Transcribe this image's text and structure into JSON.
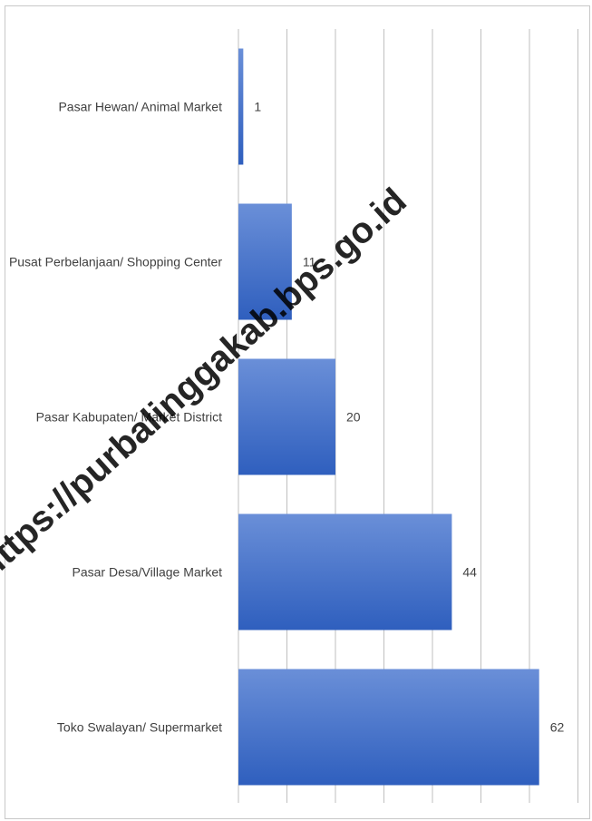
{
  "watermark": "https://purbalinggakab.bps.go.id",
  "chart_data": {
    "type": "bar",
    "orientation": "horizontal",
    "categories": [
      "Pasar Hewan/ Animal Market",
      "Pusat Perbelanjaan/ Shopping Center",
      "Pasar Kabupaten/ Market District",
      "Pasar Desa/Village Market",
      "Toko Swalayan/ Supermarket"
    ],
    "values": [
      1,
      11,
      20,
      44,
      62
    ],
    "data_labels": [
      "1",
      "11",
      "20",
      "44",
      "62"
    ],
    "xlim": [
      0,
      70
    ],
    "grid": true,
    "legend": "none",
    "colors": {
      "bar_top": "#6a8fd8",
      "bar_bottom": "#2f5fbe",
      "grid": "#bfbfbf",
      "text": "#404040"
    }
  }
}
